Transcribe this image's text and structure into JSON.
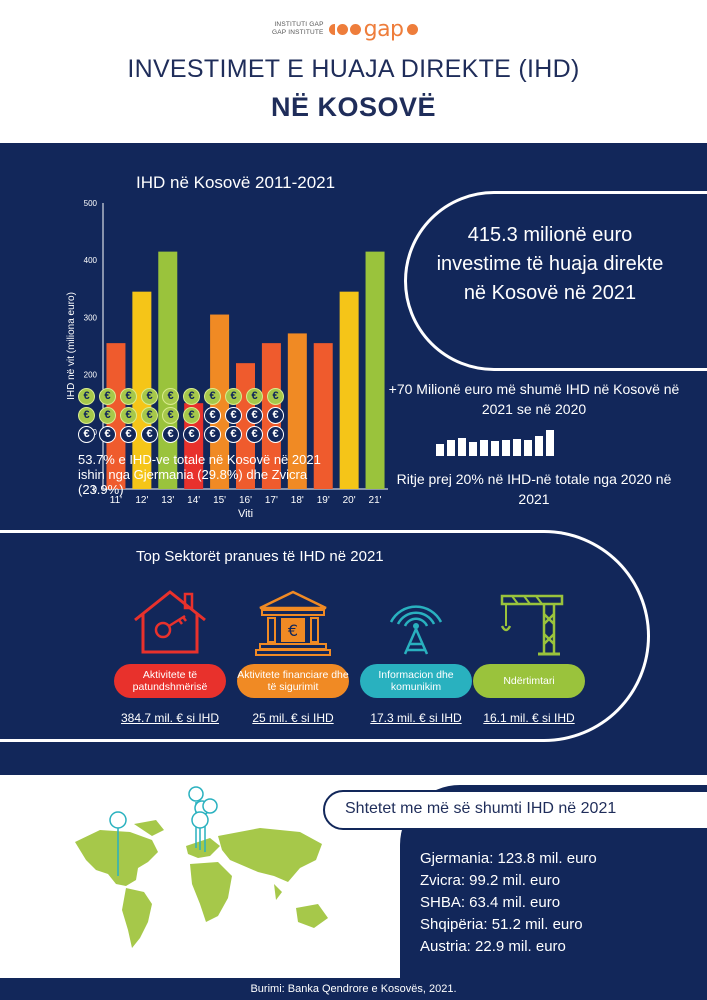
{
  "logo": {
    "line1": "INSTITUTI GAP",
    "line2": "GAP INSTITUTE",
    "wordmark": "gap"
  },
  "title": {
    "line1": "INVESTIMET E HUAJA DIREKTE (IHD)",
    "line2": "NË KOSOVË"
  },
  "chart_data": {
    "type": "bar",
    "title": "IHD në Kosovë 2011-2021",
    "xlabel": "Viti",
    "ylabel": "IHD në vit (miliona euro)",
    "ylim": [
      0,
      500
    ],
    "yticks": [
      "0",
      "100",
      "200",
      "300",
      "400",
      "500"
    ],
    "categories": [
      "11'",
      "12'",
      "13'",
      "14'",
      "15'",
      "16'",
      "17'",
      "18'",
      "19'",
      "20'",
      "21'"
    ],
    "values": [
      255,
      345,
      415,
      150,
      305,
      220,
      255,
      272,
      255,
      345,
      415
    ],
    "colors": [
      "#ef5b2d",
      "#f5c518",
      "#9ac33c",
      "#e8312c",
      "#f08a24",
      "#ef5b2d",
      "#ef5b2d",
      "#f08a24",
      "#ef5b2d",
      "#f5c518",
      "#9ac33c"
    ]
  },
  "highlight": "415.3 milionë euro investime të huaja direkte në Kosovë në 2021",
  "stats": {
    "increase": "+70 Milionë euro më shumë IHD në Kosovë në 2021 se në 2020",
    "growth": "Ritje prej 20% në IHD-në totale nga 2020 në 2021",
    "mini_bars": [
      12,
      16,
      18,
      14,
      16,
      15,
      16,
      17,
      16,
      20,
      26
    ]
  },
  "coins": {
    "symbol": "€",
    "total": 30,
    "filled": 16,
    "caption": "53.7% e IHD-ve totale në Kosovë në 2021 ishin nga Gjermania (29.8%) dhe Zvicra (23.9%)"
  },
  "sectors": {
    "title": "Top Sektorët pranues të IHD në 2021",
    "items": [
      {
        "label": "Aktivitete të patundshmërisë",
        "value": "384.7 mil. € si IHD",
        "color": "#e8312c",
        "icon": "house-key-icon"
      },
      {
        "label": "Aktivitete financiare dhe të sigurimit",
        "value": "25 mil. € si IHD",
        "color": "#f08a24",
        "icon": "bank-icon"
      },
      {
        "label": "Informacion dhe komunikim",
        "value": "17.3 mil. € si IHD",
        "color": "#29b1bf",
        "icon": "antenna-icon"
      },
      {
        "label": "Ndërtimtari",
        "value": "16.1 mil. € si IHD",
        "color": "#9ac33c",
        "icon": "crane-icon"
      }
    ]
  },
  "countries": {
    "title": "Shtetet me më së shumti IHD në 2021",
    "items": [
      "Gjermania: 123.8 mil. euro",
      "Zvicra: 99.2 mil. euro",
      "SHBA: 63.4 mil. euro",
      "Shqipëria: 51.2 mil. euro",
      "Austria:  22.9 mil. euro"
    ]
  },
  "footer": "Burimi: Banka Qendrore e Kosovës, 2021."
}
